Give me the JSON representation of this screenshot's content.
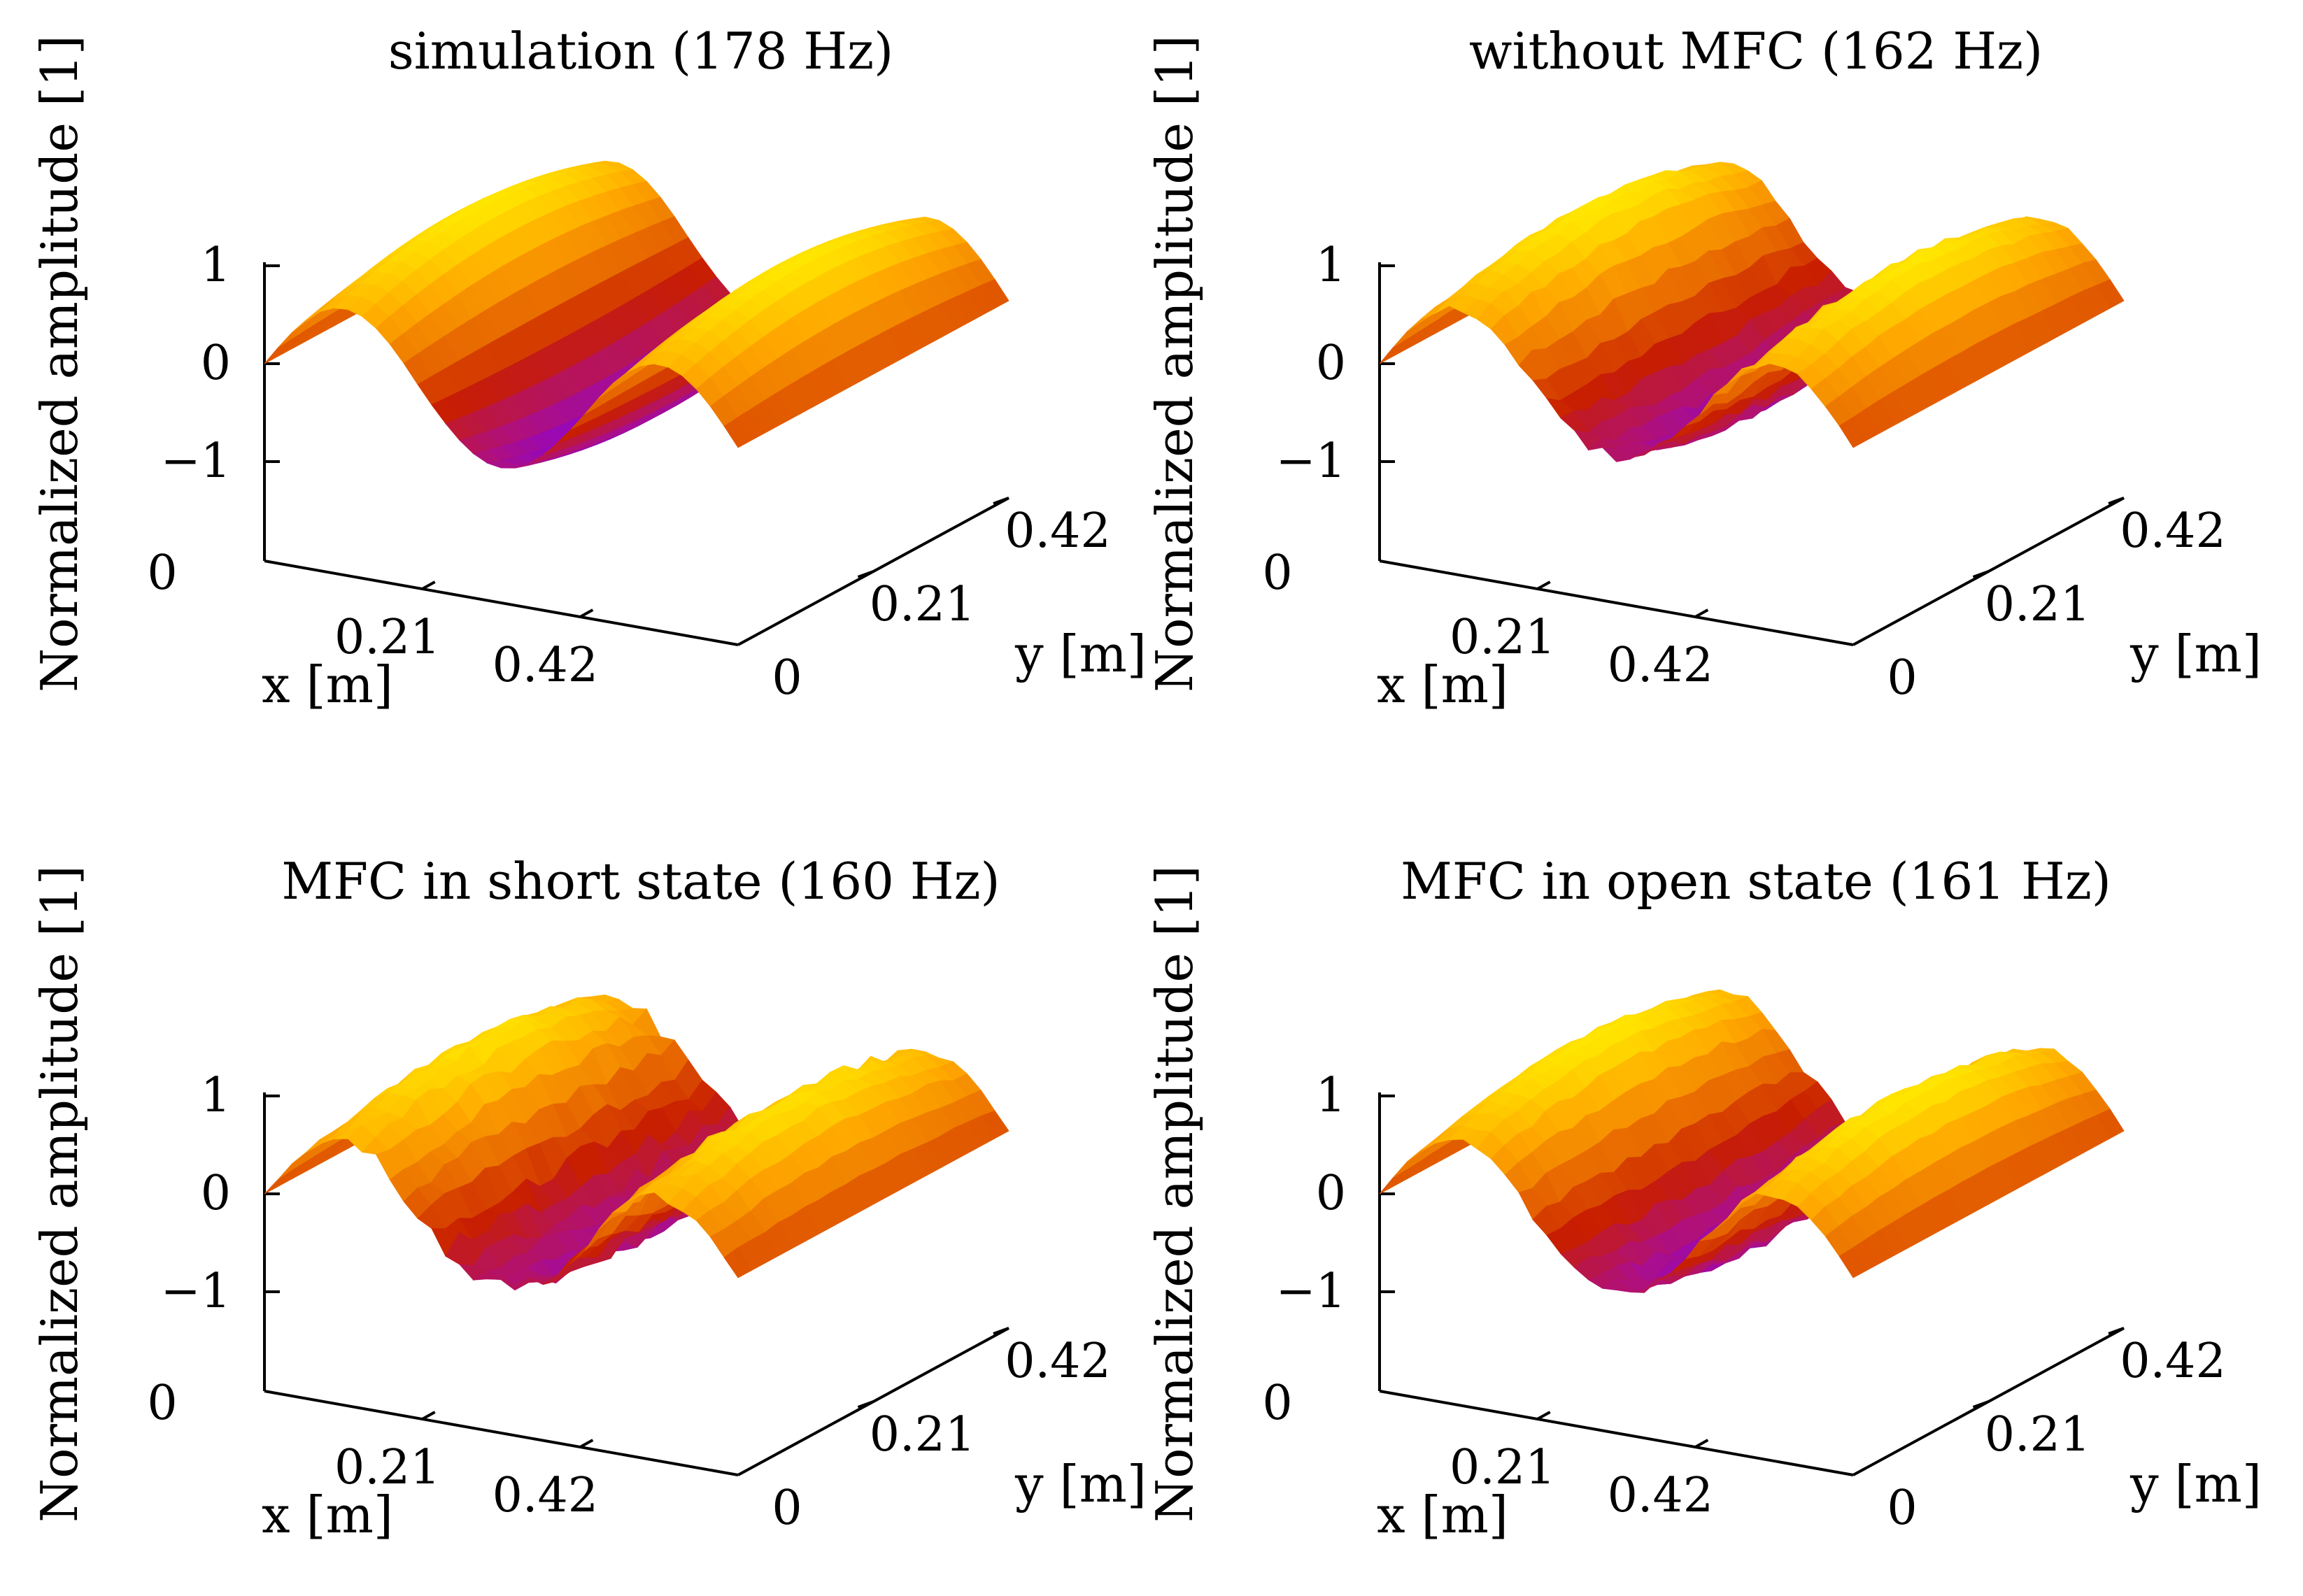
{
  "chart_data": [
    {
      "type": "surface",
      "title": "simulation (178 Hz)",
      "xlabel": "x [m]",
      "ylabel": "y [m]",
      "zlabel": "Normalized amplitude [1]",
      "xticks": [
        "0",
        "0.21",
        "0.42"
      ],
      "yticks": [
        "0",
        "0.21",
        "0.42"
      ],
      "zticks": [
        "1",
        "0",
        "−1"
      ],
      "xlim": [
        0,
        0.63
      ],
      "ylim": [
        0,
        0.42
      ],
      "zlim": [
        -1,
        1
      ],
      "mode_shape": "smooth",
      "peak_z": 1.0,
      "trough_z": -0.9
    },
    {
      "type": "surface",
      "title": "without MFC (162 Hz)",
      "xlabel": "x [m]",
      "ylabel": "y [m]",
      "zlabel": "Normalized amplitude [1]",
      "xticks": [
        "0",
        "0.21",
        "0.42"
      ],
      "yticks": [
        "0",
        "0.21",
        "0.42"
      ],
      "zticks": [
        "1",
        "0",
        "−1"
      ],
      "xlim": [
        0,
        0.63
      ],
      "ylim": [
        0,
        0.42
      ],
      "zlim": [
        -1,
        1
      ],
      "mode_shape": "measured",
      "peak_z": 1.0,
      "trough_z": -0.75
    },
    {
      "type": "surface",
      "title": "MFC in short state (160 Hz)",
      "xlabel": "x [m]",
      "ylabel": "y [m]",
      "zlabel": "Normalized amplitude [1]",
      "xticks": [
        "0",
        "0.21",
        "0.42"
      ],
      "yticks": [
        "0",
        "0.21",
        "0.42"
      ],
      "zticks": [
        "1",
        "0",
        "−1"
      ],
      "xlim": [
        0,
        0.63
      ],
      "ylim": [
        0,
        0.42
      ],
      "zlim": [
        -1,
        1
      ],
      "mode_shape": "measured-noisy",
      "peak_z": 0.95,
      "trough_z": -0.7
    },
    {
      "type": "surface",
      "title": "MFC in open state (161 Hz)",
      "xlabel": "x [m]",
      "ylabel": "y [m]",
      "zlabel": "Normalized amplitude [1]",
      "xticks": [
        "0",
        "0.21",
        "0.42"
      ],
      "yticks": [
        "0",
        "0.21",
        "0.42"
      ],
      "zticks": [
        "1",
        "0",
        "−1"
      ],
      "xlim": [
        0,
        0.63
      ],
      "ylim": [
        0,
        0.42
      ],
      "zlim": [
        -1,
        1
      ],
      "mode_shape": "measured",
      "peak_z": 1.0,
      "trough_z": -0.8
    }
  ],
  "colors": {
    "axis": "#000000",
    "palette": [
      "#7a00ff",
      "#b0107a",
      "#c81e00",
      "#e86a00",
      "#ffa800",
      "#ffe800"
    ]
  }
}
